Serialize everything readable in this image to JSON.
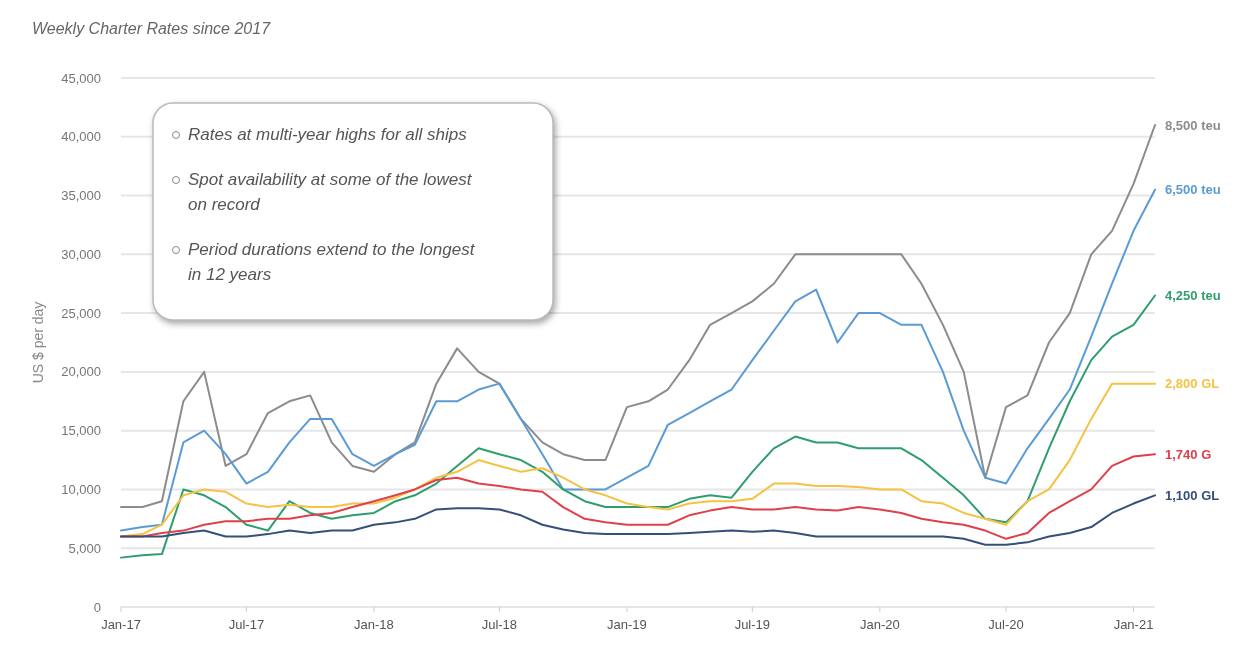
{
  "chart_data": {
    "type": "line",
    "title": "Weekly Charter Rates since 2017",
    "ylabel": "US $ per day",
    "annotations": [
      "Rates at multi-year highs for all ships",
      "Spot availability at some of the lowest on record",
      "Period durations extend to the longest in 12 years"
    ],
    "x": [
      "2017-01",
      "2017-02",
      "2017-03",
      "2017-04",
      "2017-05",
      "2017-06",
      "2017-07",
      "2017-08",
      "2017-09",
      "2017-10",
      "2017-11",
      "2017-12",
      "2018-01",
      "2018-02",
      "2018-03",
      "2018-04",
      "2018-05",
      "2018-06",
      "2018-07",
      "2018-08",
      "2018-09",
      "2018-10",
      "2018-11",
      "2018-12",
      "2019-01",
      "2019-02",
      "2019-03",
      "2019-04",
      "2019-05",
      "2019-06",
      "2019-07",
      "2019-08",
      "2019-09",
      "2019-10",
      "2019-11",
      "2019-12",
      "2020-01",
      "2020-02",
      "2020-03",
      "2020-04",
      "2020-05",
      "2020-06",
      "2020-07",
      "2020-08",
      "2020-09",
      "2020-10",
      "2020-11",
      "2020-12",
      "2021-01",
      "2021-02"
    ],
    "series": [
      {
        "name": "8,500 teu",
        "color": "#8c8c8c",
        "values": [
          8500,
          8500,
          9000,
          17500,
          20000,
          12000,
          13000,
          16500,
          17500,
          18000,
          14000,
          12000,
          11500,
          13000,
          14000,
          19000,
          22000,
          20000,
          19000,
          16000,
          14000,
          13000,
          12500,
          12500,
          17000,
          17500,
          18500,
          21000,
          24000,
          25000,
          26000,
          27500,
          30000,
          30000,
          30000,
          30000,
          30000,
          30000,
          27500,
          24000,
          20000,
          11000,
          17000,
          18000,
          22500,
          25000,
          30000,
          32000,
          36000,
          41000
        ]
      },
      {
        "name": "6,500 teu",
        "color": "#5b9bd5",
        "values": [
          6500,
          6800,
          7000,
          14000,
          15000,
          13000,
          10500,
          11500,
          14000,
          16000,
          16000,
          13000,
          12000,
          13000,
          13800,
          17500,
          17500,
          18500,
          19000,
          16000,
          13000,
          10000,
          10000,
          10000,
          11000,
          12000,
          15500,
          16500,
          17500,
          18500,
          21000,
          23500,
          26000,
          27000,
          22500,
          25000,
          25000,
          24000,
          24000,
          20000,
          15000,
          11000,
          10500,
          13500,
          16000,
          18500,
          23000,
          27500,
          32000,
          35500
        ]
      },
      {
        "name": "4,250 teu",
        "color": "#2e9e6e",
        "values": [
          4200,
          4400,
          4500,
          10000,
          9500,
          8500,
          7000,
          6500,
          9000,
          8000,
          7500,
          7800,
          8000,
          9000,
          9500,
          10500,
          12000,
          13500,
          13000,
          12500,
          11500,
          10000,
          9000,
          8500,
          8500,
          8500,
          8500,
          9200,
          9500,
          9300,
          11500,
          13500,
          14500,
          14000,
          14000,
          13500,
          13500,
          13500,
          12500,
          11000,
          9500,
          7500,
          7200,
          9000,
          13500,
          17500,
          21000,
          23000,
          24000,
          26500
        ]
      },
      {
        "name": "2,800 GL",
        "color": "#f5c242",
        "values": [
          6000,
          6200,
          7000,
          9500,
          10000,
          9800,
          8800,
          8500,
          8700,
          8500,
          8500,
          8800,
          8800,
          9300,
          10000,
          11000,
          11500,
          12500,
          12000,
          11500,
          11800,
          11000,
          10000,
          9500,
          8800,
          8500,
          8300,
          8800,
          9000,
          9000,
          9200,
          10500,
          10500,
          10300,
          10300,
          10200,
          10000,
          10000,
          9000,
          8800,
          8000,
          7500,
          7000,
          9000,
          10000,
          12500,
          16000,
          19000,
          19000,
          19000
        ]
      },
      {
        "name": "1,740 G",
        "color": "#e0404a",
        "values": [
          6000,
          6000,
          6300,
          6500,
          7000,
          7300,
          7300,
          7500,
          7500,
          7800,
          8000,
          8500,
          9000,
          9500,
          10000,
          10800,
          11000,
          10500,
          10300,
          10000,
          9800,
          8500,
          7500,
          7200,
          7000,
          7000,
          7000,
          7800,
          8200,
          8500,
          8300,
          8300,
          8500,
          8300,
          8200,
          8500,
          8300,
          8000,
          7500,
          7200,
          7000,
          6500,
          5800,
          6300,
          8000,
          9000,
          10000,
          12000,
          12800,
          13000
        ]
      },
      {
        "name": "1,100 GL",
        "color": "#34507a",
        "values": [
          6000,
          6000,
          6000,
          6300,
          6500,
          6000,
          6000,
          6200,
          6500,
          6300,
          6500,
          6500,
          7000,
          7200,
          7500,
          8300,
          8400,
          8400,
          8300,
          7800,
          7000,
          6600,
          6300,
          6200,
          6200,
          6200,
          6200,
          6300,
          6400,
          6500,
          6400,
          6500,
          6300,
          6000,
          6000,
          6000,
          6000,
          6000,
          6000,
          6000,
          5800,
          5300,
          5300,
          5500,
          6000,
          6300,
          6800,
          8000,
          8800,
          9500
        ]
      }
    ],
    "xlim": [
      "2017-01",
      "2021-02"
    ],
    "xticks": [
      {
        "value": "2017-01",
        "label": "Jan-17"
      },
      {
        "value": "2017-07",
        "label": "Jul-17"
      },
      {
        "value": "2018-01",
        "label": "Jan-18"
      },
      {
        "value": "2018-07",
        "label": "Jul-18"
      },
      {
        "value": "2019-01",
        "label": "Jan-19"
      },
      {
        "value": "2019-07",
        "label": "Jul-19"
      },
      {
        "value": "2020-01",
        "label": "Jan-20"
      },
      {
        "value": "2020-07",
        "label": "Jul-20"
      },
      {
        "value": "2021-01",
        "label": "Jan-21"
      }
    ],
    "ylim": [
      0,
      45000
    ],
    "yticks": [
      {
        "value": 0,
        "label": "0"
      },
      {
        "value": 5000,
        "label": "5,000"
      },
      {
        "value": 10000,
        "label": "10,000"
      },
      {
        "value": 15000,
        "label": "15,000"
      },
      {
        "value": 20000,
        "label": "20,000"
      },
      {
        "value": 25000,
        "label": "25,000"
      },
      {
        "value": 30000,
        "label": "30,000"
      },
      {
        "value": 35000,
        "label": "35,000"
      },
      {
        "value": 40000,
        "label": "40,000"
      },
      {
        "value": 45000,
        "label": "45,000"
      }
    ],
    "grid": "y",
    "marker": "none",
    "line_style": "solid"
  }
}
